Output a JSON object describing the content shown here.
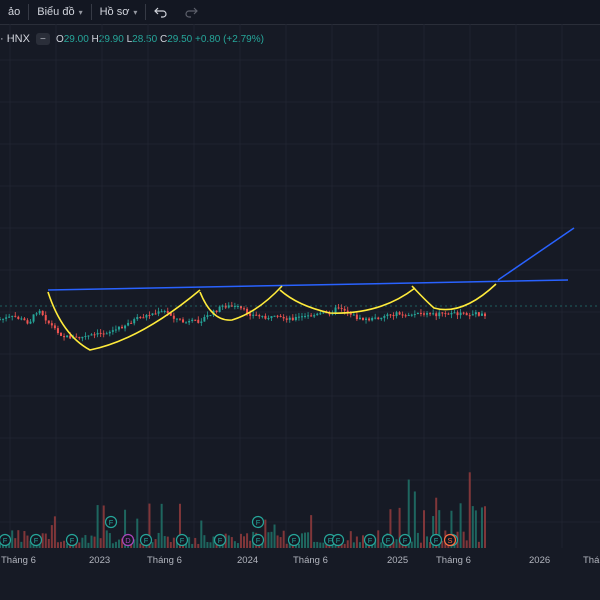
{
  "toolbar": {
    "items": [
      {
        "label": "ảo",
        "icon": ""
      },
      {
        "label": "Biểu đồ",
        "icon": "chevron-down-icon"
      },
      {
        "label": "Hồ sơ",
        "icon": "chevron-down-icon"
      }
    ],
    "undo_icon": "undo-icon",
    "redo_icon": "redo-icon"
  },
  "legend": {
    "symbol": "· HNX",
    "open_key": "O",
    "open": "29.00",
    "high_key": "H",
    "high": "29.90",
    "low_key": "L",
    "low": "28.50",
    "close_key": "C",
    "close": "29.50",
    "change": "+0.80 (+2.79%)"
  },
  "colors": {
    "up": "#26a69a",
    "down": "#ef5350",
    "trendline": "#2962ff",
    "pattern": "#ffeb3b",
    "background": "#161a25"
  },
  "xaxis": {
    "labels": [
      "Tháng 6",
      "2023",
      "Tháng 6",
      "2024",
      "Tháng 6",
      "2025",
      "Tháng 6",
      "2026",
      "Tháng"
    ]
  },
  "events": [
    "F",
    "F",
    "F",
    "F",
    "D",
    "F",
    "F",
    "F",
    "F",
    "F",
    "F",
    "F",
    "F",
    "F",
    "F",
    "F",
    "F",
    "F",
    "S"
  ],
  "chart_data": {
    "type": "candlestick",
    "title": "",
    "last_bar": {
      "open": 29.0,
      "high": 29.9,
      "low": 28.5,
      "close": 29.5,
      "change": 0.8,
      "change_pct": 2.79
    },
    "x_ticks": [
      "Tháng 6",
      "2023",
      "Tháng 6",
      "2024",
      "Tháng 6",
      "2025",
      "Tháng 6",
      "2026",
      "Tháng"
    ],
    "price_path_relative": [
      [
        0,
        0.58
      ],
      [
        0.03,
        0.55
      ],
      [
        0.06,
        0.62
      ],
      [
        0.08,
        0.45
      ],
      [
        0.1,
        0.62
      ],
      [
        0.13,
        0.78
      ],
      [
        0.16,
        0.8
      ],
      [
        0.2,
        0.76
      ],
      [
        0.24,
        0.7
      ],
      [
        0.28,
        0.58
      ],
      [
        0.31,
        0.52
      ],
      [
        0.34,
        0.49
      ],
      [
        0.36,
        0.56
      ],
      [
        0.38,
        0.62
      ],
      [
        0.41,
        0.6
      ],
      [
        0.44,
        0.5
      ],
      [
        0.46,
        0.42
      ],
      [
        0.49,
        0.44
      ],
      [
        0.52,
        0.53
      ],
      [
        0.56,
        0.56
      ],
      [
        0.6,
        0.57
      ],
      [
        0.64,
        0.54
      ],
      [
        0.68,
        0.5
      ],
      [
        0.7,
        0.43
      ],
      [
        0.72,
        0.5
      ],
      [
        0.74,
        0.58
      ],
      [
        0.77,
        0.58
      ],
      [
        0.8,
        0.52
      ]
    ],
    "annotations": {
      "resistance_line": "blue horizontal trendline across peaks",
      "breakout_projection": "blue upward line after last peak",
      "cup_patterns": 4
    }
  }
}
